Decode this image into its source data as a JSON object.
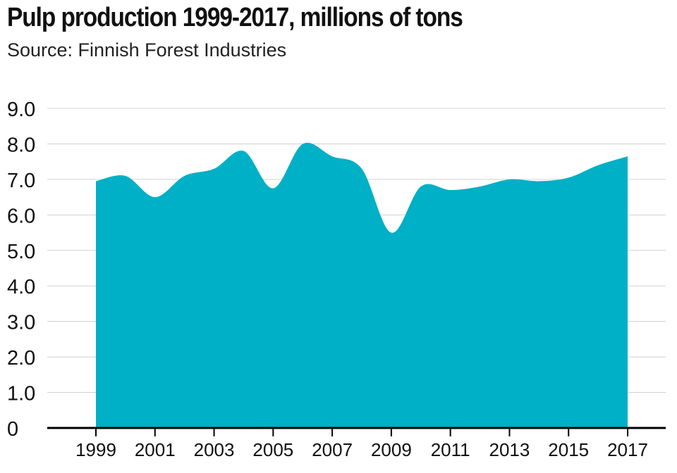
{
  "title": "Pulp production 1999-2017, millions of tons",
  "subtitle": "Source: Finnish Forest Industries",
  "colors": {
    "area": "#00b0c6",
    "grid": "#d0d0d0",
    "axis": "#000000"
  },
  "chart_data": {
    "type": "area",
    "title": "Pulp production 1999-2017, millions of tons",
    "xlabel": "",
    "ylabel": "",
    "x": [
      1999,
      2000,
      2001,
      2002,
      2003,
      2004,
      2005,
      2006,
      2007,
      2008,
      2009,
      2010,
      2011,
      2012,
      2013,
      2014,
      2015,
      2016,
      2017
    ],
    "values": [
      6.95,
      7.1,
      6.5,
      7.1,
      7.3,
      7.8,
      6.75,
      8.0,
      7.65,
      7.3,
      5.5,
      6.8,
      6.7,
      6.8,
      7.0,
      6.95,
      7.05,
      7.4,
      7.65
    ],
    "ylim": [
      0,
      9
    ],
    "yticks": [
      "0",
      "1.0",
      "2.0",
      "3.0",
      "4.0",
      "5.0",
      "6.0",
      "7.0",
      "8.0",
      "9.0"
    ],
    "xticks": [
      "1999",
      "2001",
      "2003",
      "2005",
      "2007",
      "2009",
      "2011",
      "2013",
      "2015",
      "2017"
    ],
    "grid": true,
    "legend": "none"
  }
}
